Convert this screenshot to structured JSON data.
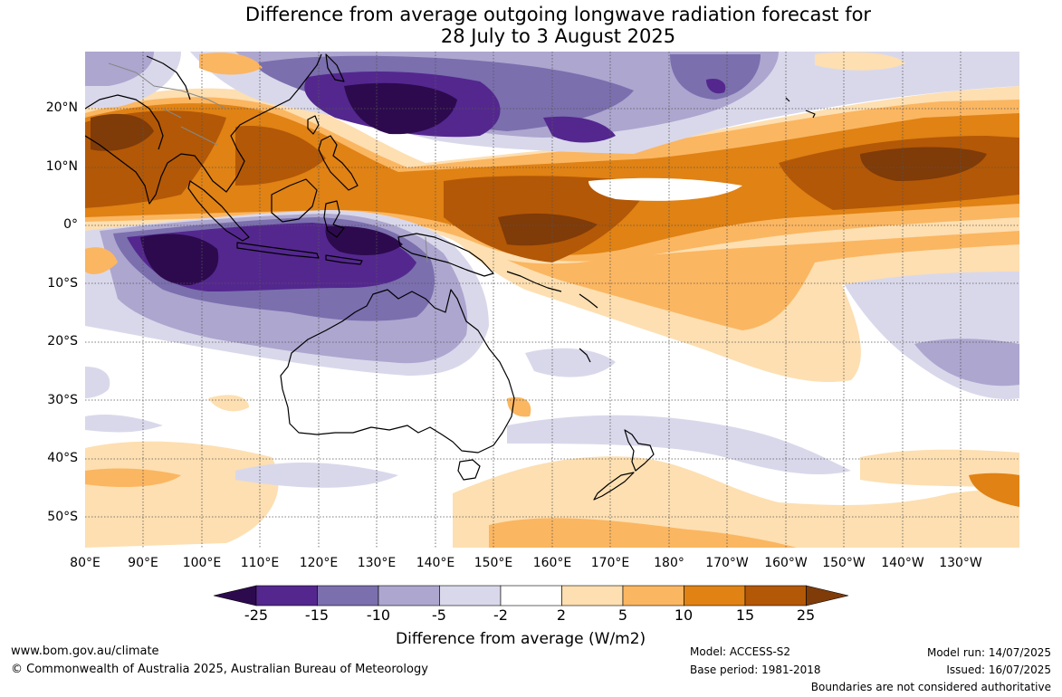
{
  "title": {
    "line1": "Difference from average outgoing longwave radiation forecast for",
    "line2": "28 July to 3 August 2025"
  },
  "map": {
    "lat_labels": [
      "20°N",
      "10°N",
      "0°",
      "10°S",
      "20°S",
      "30°S",
      "40°S",
      "50°S"
    ],
    "lon_labels": [
      "80°E",
      "90°E",
      "100°E",
      "110°E",
      "120°E",
      "130°E",
      "140°E",
      "150°E",
      "160°E",
      "170°E",
      "180°",
      "170°W",
      "160°W",
      "150°W",
      "140°W",
      "130°W"
    ],
    "lat_range": [
      -55,
      30
    ],
    "lon_range": [
      80,
      240
    ]
  },
  "colorbar": {
    "title": "Difference from average (W/m2)",
    "tick_labels": [
      "-25",
      "-15",
      "-10",
      "-5",
      "-2",
      "2",
      "5",
      "10",
      "15",
      "25"
    ],
    "colors": {
      "below_min": "#2d0a4e",
      "bin_1": "#54278f",
      "bin_2": "#7b6fae",
      "bin_3": "#ada6cf",
      "bin_4": "#d9d8eb",
      "neutral": "#ffffff",
      "bin_6": "#fddfb1",
      "bin_7": "#fbb661",
      "bin_8": "#e08214",
      "bin_9": "#b35806",
      "above_max": "#7f3b08"
    }
  },
  "footer": {
    "website": "www.bom.gov.au/climate",
    "copyright": "© Commonwealth of Australia 2025, Australian Bureau of Meteorology",
    "model": "Model: ACCESS-S2",
    "base_period": "Base period: 1981-2018",
    "model_run": "Model run: 14/07/2025",
    "issued": "Issued: 16/07/2025",
    "disclaimer": "Boundaries are not considered authoritative"
  }
}
